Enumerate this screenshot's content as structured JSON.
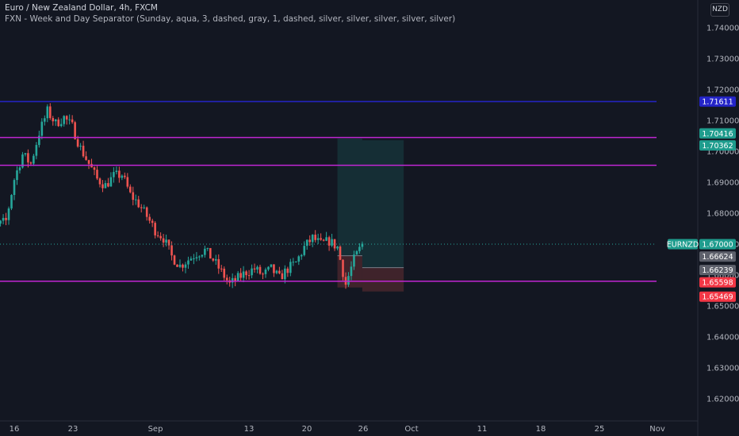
{
  "header": {
    "title": "Euro / New Zealand Dollar, 4h, FXCM",
    "indicator": "FXN - Week and Day Separator (Sunday, aqua, 3, dashed, gray, 1, dashed, silver, silver, silver, silver, silver)"
  },
  "price_scale_unit": "NZD",
  "colors": {
    "background": "#131722",
    "up": "#26a69a",
    "down": "#ef5350",
    "axis_text": "#b2b5be",
    "horizontal_line_blue": "#2424c8",
    "horizontal_line_purple": "#c026d3"
  },
  "chart_data": {
    "type": "candlestick",
    "symbol": "EURNZD",
    "timeframe": "4h",
    "x_tick_labels": [
      "16",
      "23",
      "Sep",
      "13",
      "20",
      "26",
      "Oct",
      "11",
      "18",
      "25",
      "Nov"
    ],
    "y_ticks": [
      1.74,
      1.73,
      1.72,
      1.71,
      1.7,
      1.69,
      1.68,
      1.67,
      1.66,
      1.65,
      1.64,
      1.63,
      1.62
    ],
    "ylim": [
      1.615,
      1.7445
    ],
    "last_price": 1.67,
    "horizontal_lines": [
      {
        "price": 1.71611,
        "color": "#2424c8",
        "label": "1.71611"
      },
      {
        "price": 1.7045,
        "color": "#c026d3"
      },
      {
        "price": 1.6955,
        "color": "#c026d3"
      },
      {
        "price": 1.658,
        "color": "#c026d3"
      }
    ],
    "price_labels": [
      {
        "text": "EURNZD",
        "price": 1.67,
        "kind": "symbol",
        "color": "#1e9c8d"
      },
      {
        "text": "1.67000",
        "price": 1.67,
        "kind": "last",
        "color": "#1e9c8d"
      },
      {
        "text": "1.71611",
        "price": 1.71611,
        "kind": "line",
        "color": "#2424c8"
      },
      {
        "text": "1.70416",
        "price": 1.70416,
        "kind": "target",
        "color": "#1e9c8d"
      },
      {
        "text": "1.70362",
        "price": 1.70362,
        "kind": "target",
        "color": "#1e9c8d"
      },
      {
        "text": "1.66624",
        "price": 1.66624,
        "kind": "entry",
        "color": "#5d606b"
      },
      {
        "text": "1.66239",
        "price": 1.66239,
        "kind": "entry",
        "color": "#5d606b"
      },
      {
        "text": "1.65598",
        "price": 1.65598,
        "kind": "stop",
        "color": "#f23645"
      },
      {
        "text": "1.65469",
        "price": 1.65469,
        "kind": "stop",
        "color": "#f23645"
      }
    ],
    "positions": [
      {
        "entry": 1.66624,
        "target": 1.70416,
        "stop": 1.65598,
        "start": "Sep 24",
        "end": "Sep 27"
      },
      {
        "entry": 1.66239,
        "target": 1.70362,
        "stop": 1.65469,
        "start": "Sep 27",
        "end": "Oct 02"
      }
    ],
    "candles_close_path": [
      [
        "Aug 12",
        1.6745
      ],
      [
        "Aug 14",
        1.676
      ],
      [
        "Aug 15",
        1.6775
      ],
      [
        "Aug 16",
        1.691
      ],
      [
        "Aug 17",
        1.699
      ],
      [
        "Aug 18",
        1.696
      ],
      [
        "Aug 19",
        1.706
      ],
      [
        "Aug 20",
        1.713
      ],
      [
        "Aug 21",
        1.709
      ],
      [
        "Aug 22",
        1.711
      ],
      [
        "Aug 23",
        1.708
      ],
      [
        "Aug 24",
        1.701
      ],
      [
        "Aug 25",
        1.696
      ],
      [
        "Aug 26",
        1.691
      ],
      [
        "Aug 27",
        1.689
      ],
      [
        "Aug 28",
        1.692
      ],
      [
        "Aug 29",
        1.6925
      ],
      [
        "Aug 30",
        1.686
      ],
      [
        "Aug 31",
        1.683
      ],
      [
        "Sep 01",
        1.679
      ],
      [
        "Sep 02",
        1.6745
      ],
      [
        "Sep 03",
        1.672
      ],
      [
        "Sep 04",
        1.666
      ],
      [
        "Sep 05",
        1.663
      ],
      [
        "Sep 06",
        1.665
      ],
      [
        "Sep 07",
        1.667
      ],
      [
        "Sep 08",
        1.668
      ],
      [
        "Sep 09",
        1.665
      ],
      [
        "Sep 10",
        1.661
      ],
      [
        "Sep 11",
        1.657
      ],
      [
        "Sep 12",
        1.659
      ],
      [
        "Sep 13",
        1.661
      ],
      [
        "Sep 14",
        1.662
      ],
      [
        "Sep 15",
        1.66
      ],
      [
        "Sep 16",
        1.662
      ],
      [
        "Sep 17",
        1.659
      ],
      [
        "Sep 18",
        1.662
      ],
      [
        "Sep 19",
        1.664
      ],
      [
        "Sep 20",
        1.669
      ],
      [
        "Sep 21",
        1.672
      ],
      [
        "Sep 22",
        1.67
      ],
      [
        "Sep 23",
        1.671
      ],
      [
        "Sep 24",
        1.669
      ],
      [
        "Sep 25",
        1.657
      ],
      [
        "Sep 26",
        1.665
      ],
      [
        "Sep 27",
        1.67
      ]
    ]
  }
}
